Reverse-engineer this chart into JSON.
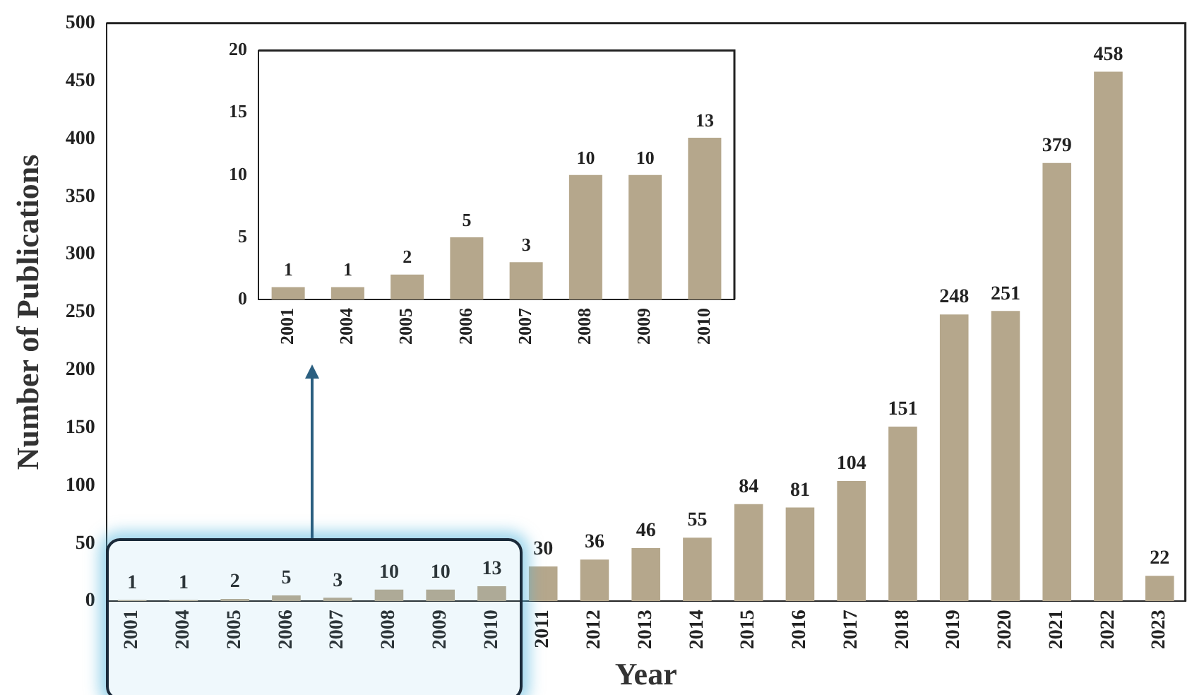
{
  "chart_data": [
    {
      "type": "bar",
      "xlabel": "Year",
      "ylabel": "Number of Publications",
      "categories": [
        "2001",
        "2004",
        "2005",
        "2006",
        "2007",
        "2008",
        "2009",
        "2010",
        "2011",
        "2012",
        "2013",
        "2014",
        "2015",
        "2016",
        "2017",
        "2018",
        "2019",
        "2020",
        "2021",
        "2022",
        "2023"
      ],
      "values": [
        1,
        1,
        2,
        5,
        3,
        10,
        10,
        13,
        30,
        36,
        46,
        55,
        84,
        81,
        104,
        151,
        248,
        251,
        379,
        458,
        22
      ],
      "color": "#b5a78c",
      "ylim": [
        0,
        500
      ],
      "yticks": [
        0,
        50,
        100,
        150,
        200,
        250,
        300,
        350,
        400,
        450,
        500
      ],
      "grid": false,
      "legend": false,
      "data_labels": true
    },
    {
      "type": "bar",
      "categories": [
        "2001",
        "2004",
        "2005",
        "2006",
        "2007",
        "2008",
        "2009",
        "2010"
      ],
      "values": [
        1,
        1,
        2,
        5,
        3,
        10,
        10,
        13
      ],
      "color": "#b5a78c",
      "ylim": [
        0,
        20
      ],
      "yticks": [
        0,
        5,
        10,
        15,
        20
      ],
      "grid": false,
      "legend": false,
      "data_labels": true
    }
  ]
}
